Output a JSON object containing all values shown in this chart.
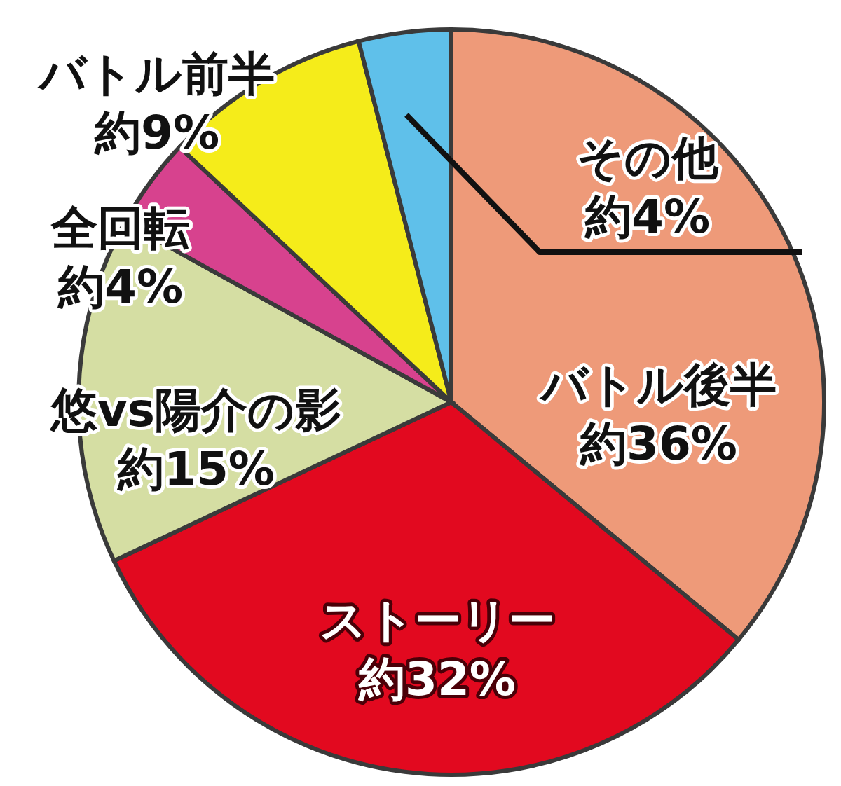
{
  "chart_data": {
    "type": "pie",
    "categories": [
      "バトル後半",
      "ストーリー",
      "悠vs陽介の影",
      "全回転",
      "バトル前半",
      "その他"
    ],
    "values": [
      36,
      32,
      15,
      4,
      9,
      4
    ],
    "colors": [
      "#ee9a79",
      "#e2091f",
      "#d5dea3",
      "#d7428e",
      "#f5ec1a",
      "#5fc0ea"
    ],
    "value_labels": [
      "約36%",
      "約32%",
      "約15%",
      "約4%",
      "約9%",
      "約4%"
    ]
  }
}
